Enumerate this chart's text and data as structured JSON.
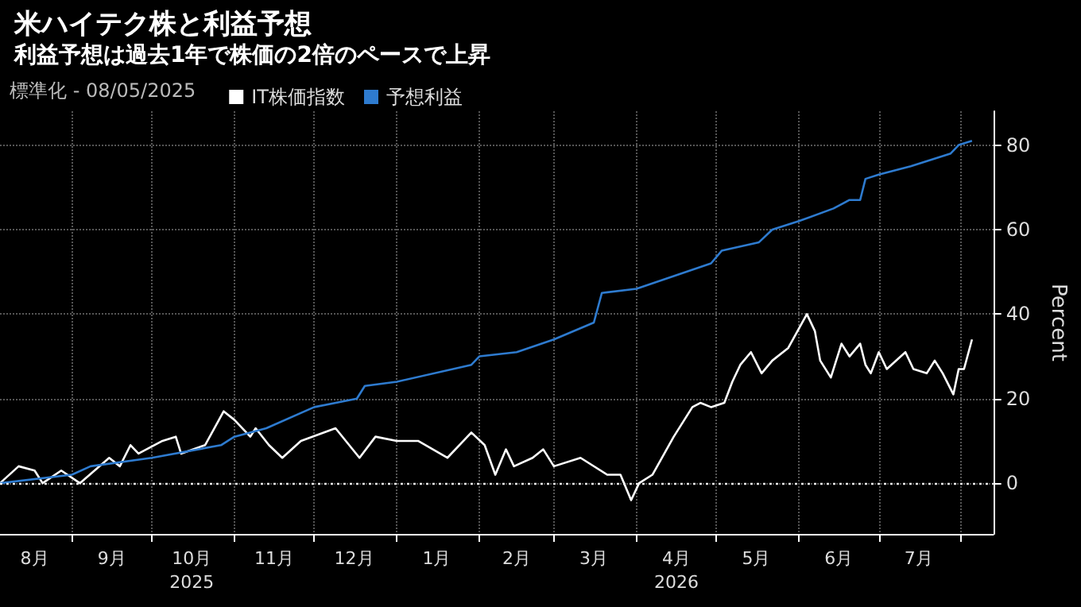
{
  "chart_data": {
    "type": "line",
    "title": "米ハイテク株と利益予想",
    "subtitle": "利益予想は過去1年で株価の2倍のペースで上昇",
    "legend_title": "標準化 - 08/05/2025",
    "ylabel": "Percent",
    "legend": "top left",
    "grid": true,
    "marker": "none",
    "line_style": "solid",
    "xlim": [
      "2025-08-05",
      "2026-08-13"
    ],
    "ylim": [
      -12,
      88
    ],
    "yticks": [
      0,
      20,
      40,
      60,
      80
    ],
    "xticks": [
      {
        "value": "2025-08-18",
        "label": "8月"
      },
      {
        "value": "2025-09-01",
        "label": null
      },
      {
        "value": "2025-09-16",
        "label": "9月"
      },
      {
        "value": "2025-10-01",
        "label": null
      },
      {
        "value": "2025-10-16",
        "label": "10月\n2025"
      },
      {
        "value": "2025-11-01",
        "label": null
      },
      {
        "value": "2025-11-16",
        "label": "11月"
      },
      {
        "value": "2025-12-01",
        "label": null
      },
      {
        "value": "2025-12-16",
        "label": "12月"
      },
      {
        "value": "2026-01-01",
        "label": null
      },
      {
        "value": "2026-01-16",
        "label": "1月"
      },
      {
        "value": "2026-02-01",
        "label": null
      },
      {
        "value": "2026-02-15",
        "label": "2月"
      },
      {
        "value": "2026-03-01",
        "label": null
      },
      {
        "value": "2026-03-16",
        "label": "3月"
      },
      {
        "value": "2026-04-01",
        "label": null
      },
      {
        "value": "2026-04-16",
        "label": "4月\n2026"
      },
      {
        "value": "2026-05-01",
        "label": null
      },
      {
        "value": "2026-05-16",
        "label": "5月"
      },
      {
        "value": "2026-06-01",
        "label": null
      },
      {
        "value": "2026-06-16",
        "label": "6月"
      },
      {
        "value": "2026-07-01",
        "label": null
      },
      {
        "value": "2026-07-16",
        "label": "7月"
      },
      {
        "value": "2026-08-01",
        "label": null
      }
    ],
    "ref_lines": [
      {
        "axis": "y",
        "value": 0,
        "color": "#ffffff",
        "line_style": "dotted"
      }
    ],
    "series": [
      {
        "name": "IT株価指数",
        "color": "#ffffff",
        "x": [
          "2025-08-05",
          "2025-08-12",
          "2025-08-18",
          "2025-08-21",
          "2025-08-28",
          "2025-09-04",
          "2025-09-15",
          "2025-09-19",
          "2025-09-23",
          "2025-09-26",
          "2025-10-05",
          "2025-10-10",
          "2025-10-12",
          "2025-10-21",
          "2025-10-28",
          "2025-11-01",
          "2025-11-07",
          "2025-11-09",
          "2025-11-14",
          "2025-11-19",
          "2025-11-26",
          "2025-12-09",
          "2025-12-18",
          "2025-12-24",
          "2026-01-01",
          "2026-01-09",
          "2026-01-20",
          "2026-01-29",
          "2026-02-03",
          "2026-02-07",
          "2026-02-11",
          "2026-02-14",
          "2026-02-21",
          "2026-02-25",
          "2026-03-01",
          "2026-03-11",
          "2026-03-21",
          "2026-03-26",
          "2026-03-30",
          "2026-04-02",
          "2026-04-07",
          "2026-04-15",
          "2026-04-19",
          "2026-04-22",
          "2026-04-25",
          "2026-04-29",
          "2026-05-04",
          "2026-05-07",
          "2026-05-10",
          "2026-05-14",
          "2026-05-18",
          "2026-05-22",
          "2026-05-28",
          "2026-06-04",
          "2026-06-07",
          "2026-06-09",
          "2026-06-13",
          "2026-06-17",
          "2026-06-20",
          "2026-06-24",
          "2026-06-26",
          "2026-06-28",
          "2026-07-01",
          "2026-07-04",
          "2026-07-11",
          "2026-07-14",
          "2026-07-19",
          "2026-07-22",
          "2026-07-25",
          "2026-07-29",
          "2026-07-31",
          "2026-08-02",
          "2026-08-05"
        ],
        "values": [
          0,
          4,
          3,
          0,
          3,
          0,
          6,
          4,
          9,
          7,
          10,
          11,
          7,
          9,
          17,
          15,
          11,
          13,
          9,
          6,
          10,
          13,
          6,
          11,
          10,
          10,
          6,
          12,
          9,
          2,
          8,
          4,
          6,
          8,
          4,
          6,
          2,
          2,
          -4,
          0,
          2,
          11,
          15,
          18,
          19,
          18,
          19,
          24,
          28,
          31,
          26,
          29,
          32,
          40,
          36,
          29,
          25,
          33,
          30,
          33,
          28,
          26,
          31,
          27,
          31,
          27,
          26,
          29,
          26,
          21,
          27,
          27,
          34
        ]
      },
      {
        "name": "予想利益",
        "color": "#2e7bcf",
        "x": [
          "2025-08-05",
          "2025-09-01",
          "2025-09-08",
          "2025-10-01",
          "2025-10-27",
          "2025-11-01",
          "2025-11-13",
          "2025-12-01",
          "2025-12-17",
          "2025-12-20",
          "2026-01-01",
          "2026-01-29",
          "2026-02-01",
          "2026-02-15",
          "2026-03-01",
          "2026-03-16",
          "2026-03-19",
          "2026-04-01",
          "2026-04-15",
          "2026-04-29",
          "2026-05-03",
          "2026-05-17",
          "2026-05-22",
          "2026-06-01",
          "2026-06-14",
          "2026-06-20",
          "2026-06-24",
          "2026-06-26",
          "2026-07-01",
          "2026-07-13",
          "2026-07-28",
          "2026-07-31",
          "2026-08-05"
        ],
        "values": [
          0,
          2,
          4,
          6,
          9,
          11,
          13,
          18,
          20,
          23,
          24,
          28,
          30,
          31,
          34,
          38,
          45,
          46,
          49,
          52,
          55,
          57,
          60,
          62,
          65,
          67,
          67,
          72,
          73,
          75,
          78,
          80,
          81
        ]
      }
    ]
  }
}
